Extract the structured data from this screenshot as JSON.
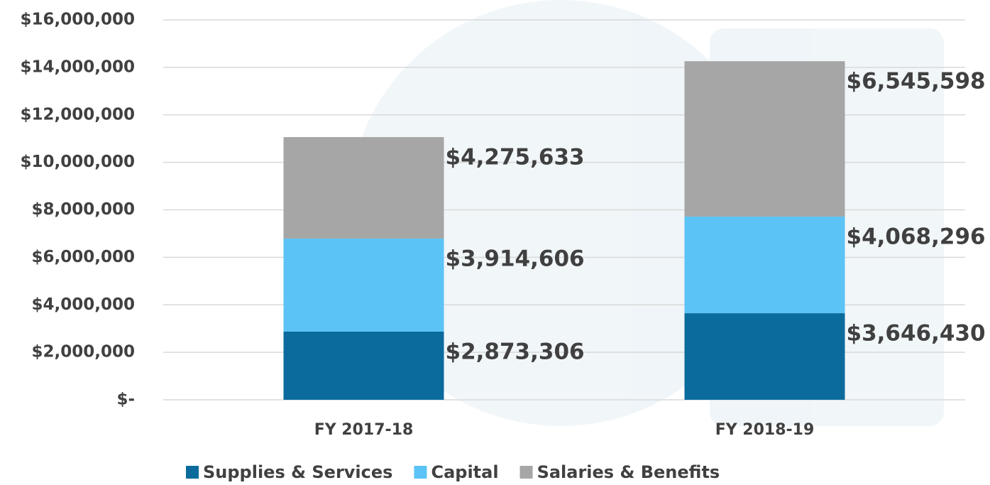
{
  "chart_data": {
    "type": "stacked_bar",
    "categories": [
      "FY 2017-18",
      "FY 2018-19"
    ],
    "series": [
      {
        "name": "Supplies & Services",
        "color": "#0b6b9c",
        "values": [
          2873306,
          3646430
        ],
        "value_labels": [
          "$2,873,306",
          "$3,646,430"
        ]
      },
      {
        "name": "Capital",
        "color": "#5bc3f5",
        "values": [
          3914606,
          4068296
        ],
        "value_labels": [
          "$3,914,606",
          "$4,068,296"
        ]
      },
      {
        "name": "Salaries & Benefits",
        "color": "#a6a6a6",
        "values": [
          4275633,
          6545598
        ],
        "value_labels": [
          "$4,275,633",
          "$6,545,598"
        ]
      }
    ],
    "ylim": [
      0,
      16000000
    ],
    "yticks": [
      {
        "value": 0,
        "label": "$-"
      },
      {
        "value": 2000000,
        "label": "$2,000,000"
      },
      {
        "value": 4000000,
        "label": "$4,000,000"
      },
      {
        "value": 6000000,
        "label": "$6,000,000"
      },
      {
        "value": 8000000,
        "label": "$8,000,000"
      },
      {
        "value": 10000000,
        "label": "$10,000,000"
      },
      {
        "value": 12000000,
        "label": "$12,000,000"
      },
      {
        "value": 14000000,
        "label": "$14,000,000"
      },
      {
        "value": 16000000,
        "label": "$16,000,000"
      }
    ],
    "grid": true,
    "legend": "bottom"
  }
}
